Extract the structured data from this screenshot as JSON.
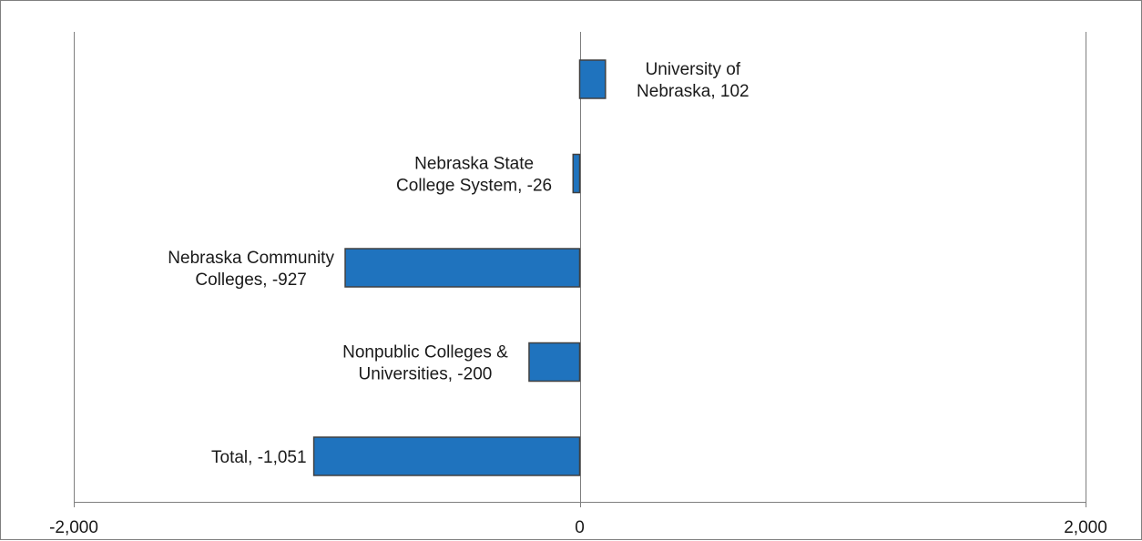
{
  "colors": {
    "bar_fill": "#1f73be",
    "bar_stroke": "#404040",
    "axis": "#7f7f7f",
    "text": "#1a1a1a"
  },
  "chart_data": {
    "type": "bar",
    "orientation": "horizontal",
    "categories": [
      "University of Nebraska",
      "Nebraska State College System",
      "Nebraska Community Colleges",
      "Nonpublic Colleges & Universities",
      "Total"
    ],
    "values": [
      102,
      -26,
      -927,
      -200,
      -1051
    ],
    "data_labels": [
      [
        "University of",
        "Nebraska, 102"
      ],
      [
        "Nebraska State",
        "College System, -26"
      ],
      [
        "Nebraska Community",
        "Colleges, -927"
      ],
      [
        "Nonpublic Colleges &",
        "Universities, -200"
      ],
      [
        "Total, -1,051"
      ]
    ],
    "xlim": [
      -2000,
      2000
    ],
    "x_ticks": [
      -2000,
      0,
      2000
    ],
    "x_tick_labels": [
      "-2,000",
      "0",
      "2,000"
    ],
    "title": "",
    "xlabel": "",
    "ylabel": "",
    "grid": "vertical lines at ticks",
    "legend": "none"
  }
}
